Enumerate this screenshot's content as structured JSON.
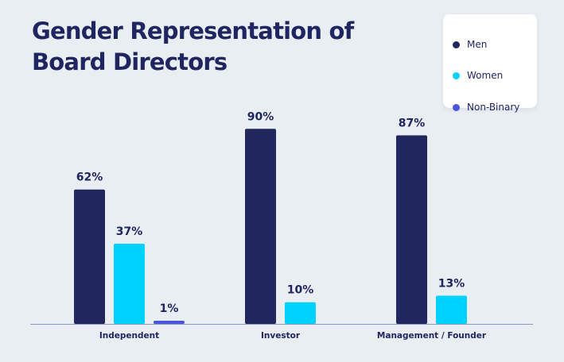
{
  "title": "Gender Representation of Board Directors",
  "colors": {
    "men": "#22265f",
    "women": "#00d2ff",
    "non_binary": "#4c56dd",
    "axis": "#8e97c4"
  },
  "legend": [
    {
      "label": "Men"
    },
    {
      "label": "Women"
    },
    {
      "label": "Non-Binary"
    }
  ],
  "chart_data": {
    "type": "bar",
    "title": "Gender Representation of Board Directors",
    "categories": [
      "Independent",
      "Investor",
      "Management / Founder"
    ],
    "series": [
      {
        "name": "Men",
        "values": [
          62,
          90,
          87
        ]
      },
      {
        "name": "Women",
        "values": [
          37,
          10,
          13
        ]
      },
      {
        "name": "Non-Binary",
        "values": [
          1,
          null,
          null
        ]
      }
    ],
    "value_labels": [
      [
        "62%",
        "37%",
        "1%"
      ],
      [
        "90%",
        "10%"
      ],
      [
        "87%",
        "13%"
      ]
    ],
    "xlabel": "",
    "ylabel": "",
    "ylim": [
      0,
      100
    ],
    "grid": false,
    "legend_position": "top-right"
  }
}
